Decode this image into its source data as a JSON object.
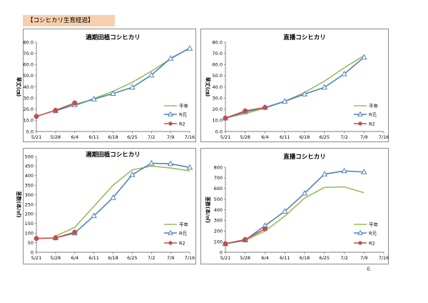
{
  "header": {
    "label": "【コシヒカリ生育経過】"
  },
  "page_number": "6",
  "colors": {
    "heinen": "#9bbb59",
    "rgan": "#4f81bd",
    "r2": "#c0504d"
  },
  "chart_data": [
    {
      "type": "line",
      "title": "適期田植コシヒカリ",
      "ylabel": "草丈(㎝)",
      "ylim": [
        0,
        80
      ],
      "yticks": [
        "0.0",
        "10.0",
        "20.0",
        "30.0",
        "40.0",
        "50.0",
        "60.0",
        "70.0",
        "80.0"
      ],
      "categories": [
        "5/21",
        "5/28",
        "6/4",
        "6/11",
        "6/18",
        "6/25",
        "7/2",
        "7/9",
        "7/16"
      ],
      "series": [
        {
          "name": "平年",
          "values": [
            null,
            null,
            23,
            29.5,
            36,
            44,
            54,
            65,
            75
          ]
        },
        {
          "name": "R元",
          "values": [
            null,
            18.5,
            24,
            29,
            34,
            39.5,
            50.5,
            65.5,
            74.5
          ]
        },
        {
          "name": "R2",
          "values": [
            13.5,
            19,
            25.5,
            null,
            null,
            null,
            null,
            null,
            null
          ]
        }
      ]
    },
    {
      "type": "line",
      "title": "直播コシヒカリ",
      "ylabel": "草丈(㎝)",
      "ylim": [
        0,
        80
      ],
      "yticks": [
        "0.0",
        "10.0",
        "20.0",
        "30.0",
        "40.0",
        "50.0",
        "60.0",
        "70.0",
        "80.0"
      ],
      "categories": [
        "5/21",
        "5/28",
        "6/4",
        "6/11",
        "6/18",
        "6/25",
        "7/2",
        "7/9",
        "7/16"
      ],
      "series": [
        {
          "name": "平年",
          "values": [
            12,
            16,
            21,
            27,
            35,
            45,
            57,
            68,
            null
          ]
        },
        {
          "name": "R元",
          "values": [
            12,
            17.5,
            21.5,
            27,
            33.5,
            39.5,
            51.5,
            66.5,
            null
          ]
        },
        {
          "name": "R2",
          "values": [
            12,
            18.5,
            21.5,
            null,
            null,
            null,
            null,
            null,
            null
          ]
        }
      ]
    },
    {
      "type": "line",
      "title": "適期田植コシヒカリ",
      "ylabel": "茎数(本/㎡)",
      "ylim": [
        0,
        500
      ],
      "yticks": [
        "0",
        "50",
        "100",
        "150",
        "200",
        "250",
        "300",
        "350",
        "400",
        "450",
        "500"
      ],
      "categories": [
        "5/21",
        "5/28",
        "6/4",
        "6/11",
        "6/18",
        "6/25",
        "7/2",
        "7/9",
        "7/16"
      ],
      "series": [
        {
          "name": "平年",
          "values": [
            null,
            85,
            130,
            240,
            350,
            430,
            450,
            440,
            425
          ]
        },
        {
          "name": "R元",
          "values": [
            null,
            75,
            100,
            190,
            285,
            405,
            465,
            462,
            443
          ]
        },
        {
          "name": "R2",
          "values": [
            72,
            75,
            105,
            null,
            null,
            null,
            null,
            null,
            null
          ]
        }
      ]
    },
    {
      "type": "line",
      "title": "直播コシヒカリ",
      "ylabel": "茎数(本/㎡)",
      "ylim": [
        0,
        800
      ],
      "yticks": [
        "0",
        "100",
        "200",
        "300",
        "400",
        "500",
        "600",
        "700",
        "800"
      ],
      "categories": [
        "5/21",
        "5/28",
        "6/4",
        "6/11",
        "6/18",
        "6/25",
        "7/2",
        "7/9",
        "7/16"
      ],
      "series": [
        {
          "name": "平年",
          "values": [
            80,
            110,
            200,
            340,
            510,
            610,
            615,
            560,
            null
          ]
        },
        {
          "name": "R元",
          "values": [
            80,
            115,
            250,
            385,
            555,
            735,
            765,
            755,
            null
          ]
        },
        {
          "name": "R2",
          "values": [
            80,
            120,
            220,
            null,
            null,
            null,
            null,
            null,
            null
          ]
        }
      ]
    }
  ]
}
